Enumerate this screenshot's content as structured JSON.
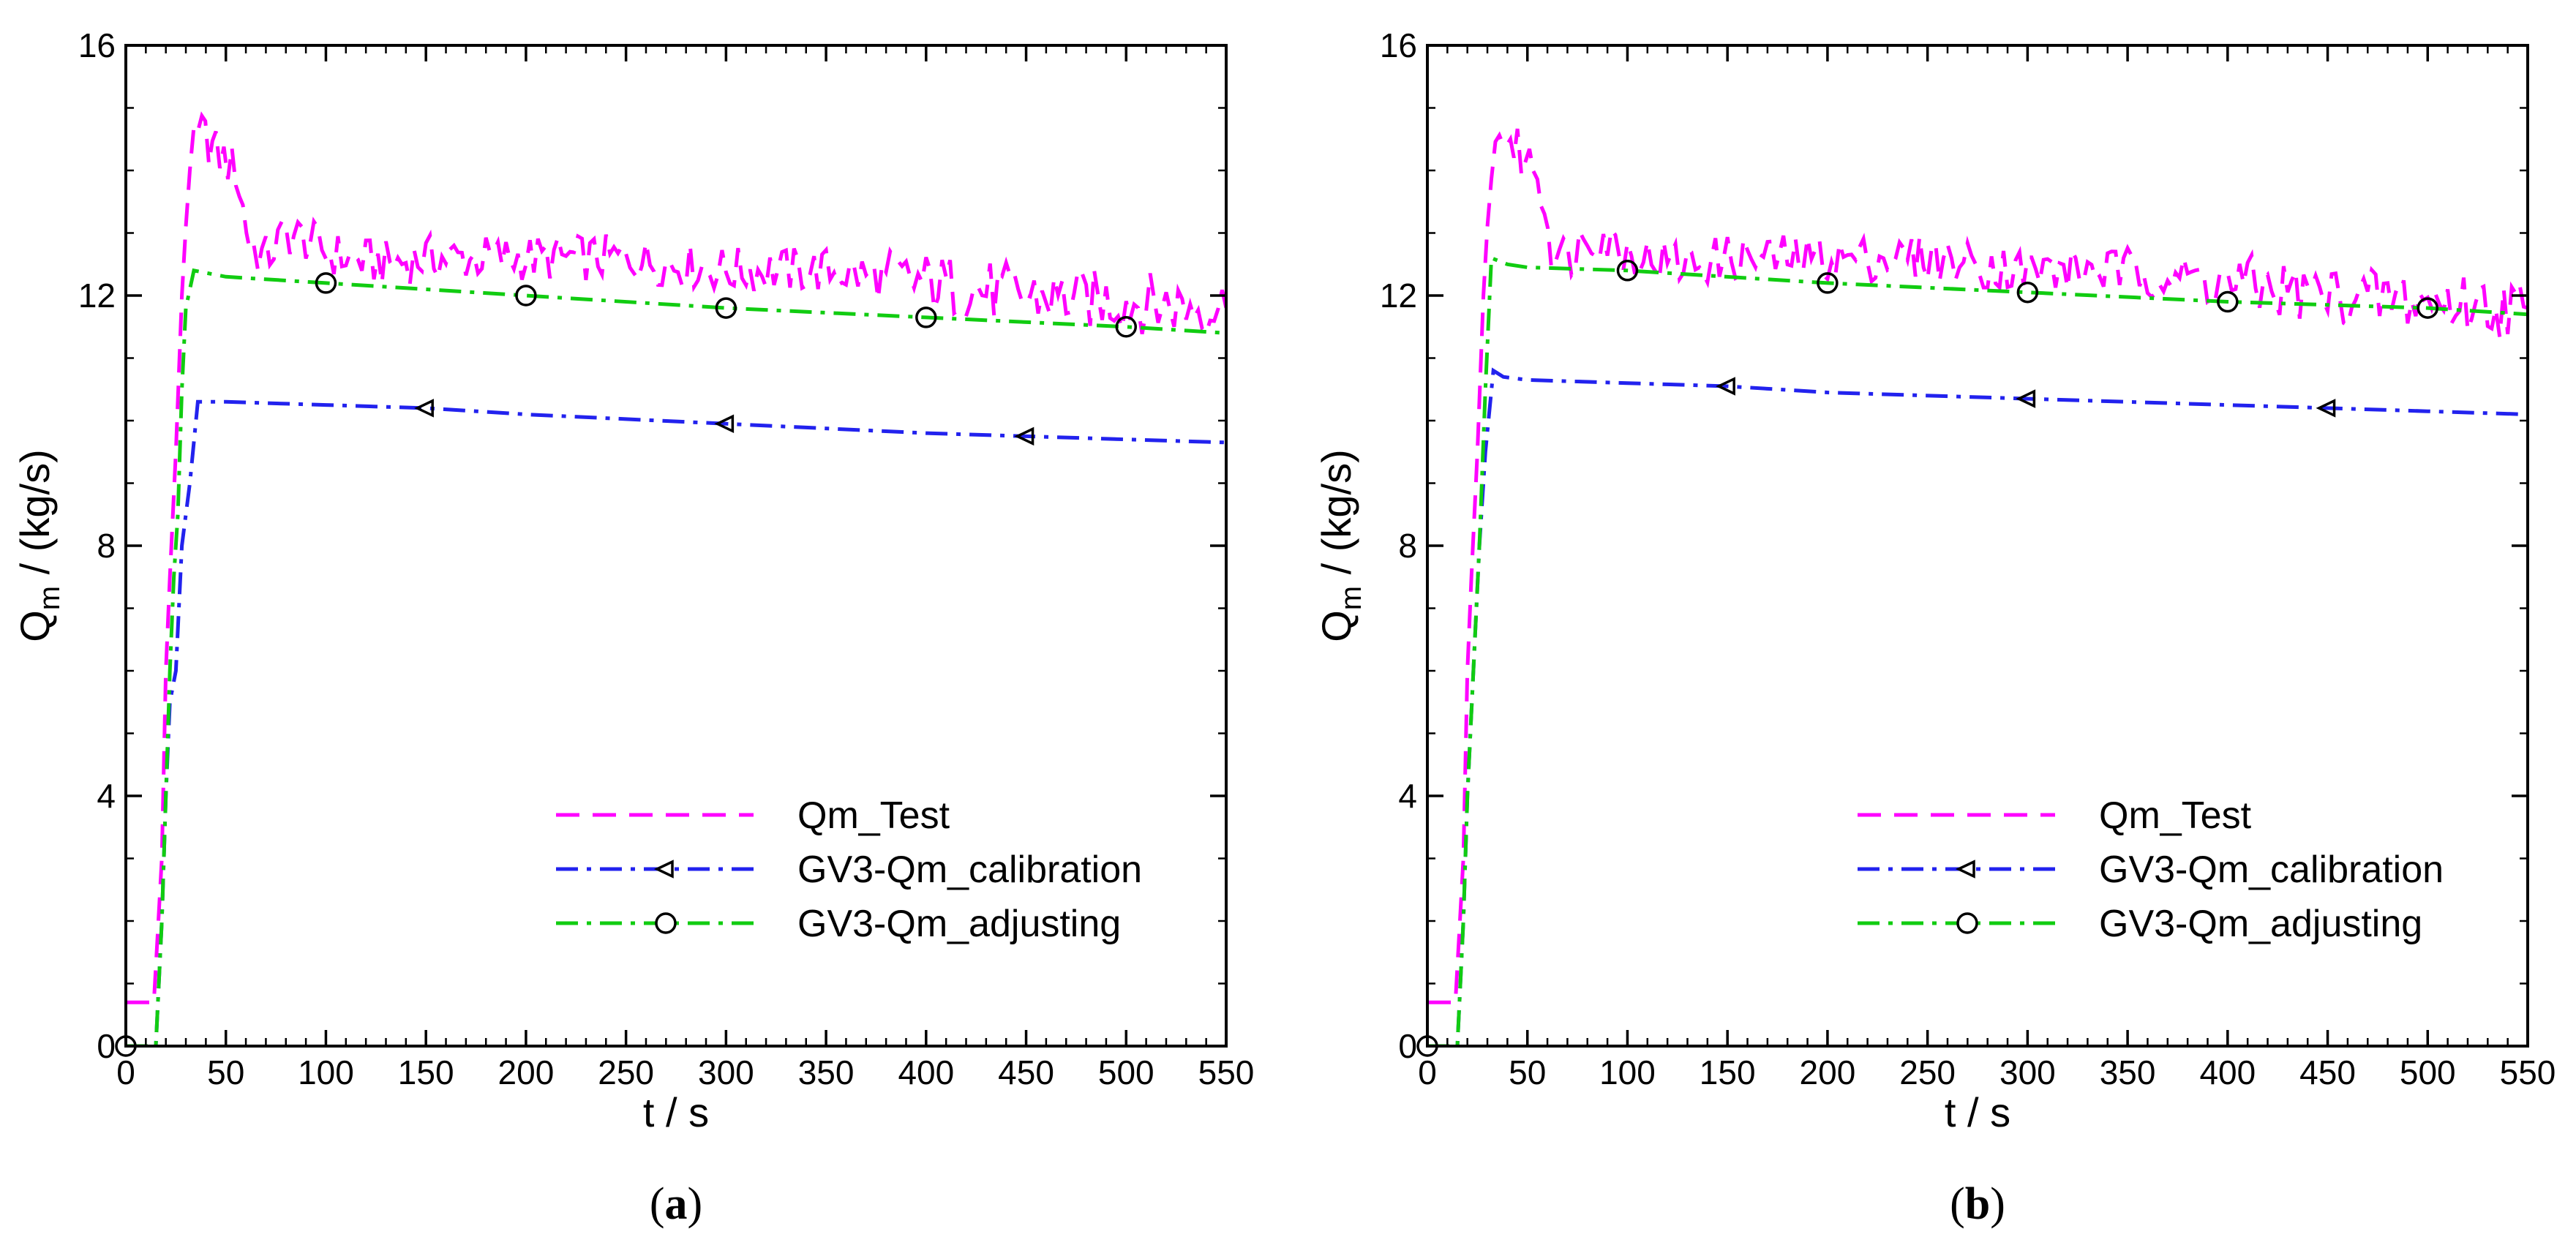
{
  "colors": {
    "test": "#ff00ff",
    "calibration": "#2222ee",
    "adjusting": "#11cc11",
    "axis": "#000000"
  },
  "chart_data": [
    {
      "type": "line",
      "panel_label": "a",
      "xlabel": "t / s",
      "ylabel_main": "Q",
      "ylabel_sub": "m",
      "ylabel_rest": " / (kg/s)",
      "xlim": [
        0,
        550
      ],
      "ylim": [
        0,
        16
      ],
      "xticks": [
        0,
        50,
        100,
        150,
        200,
        250,
        300,
        350,
        400,
        450,
        500,
        550
      ],
      "yticks": [
        0,
        4,
        8,
        12,
        16
      ],
      "legend": [
        "Qm_Test",
        "GV3-Qm_calibration",
        "GV3-Qm_adjusting"
      ],
      "series": [
        {
          "name": "Qm_Test",
          "style": "dashed",
          "points": [
            [
              0,
              0.7
            ],
            [
              14,
              0.7
            ],
            [
              18,
              3
            ],
            [
              20,
              6
            ],
            [
              22,
              7.5
            ],
            [
              25,
              9.5
            ],
            [
              28,
              12
            ],
            [
              32,
              14.2
            ],
            [
              38,
              14.6
            ],
            [
              45,
              14.3
            ],
            [
              55,
              14.0
            ],
            [
              62,
              12.8
            ],
            [
              70,
              12.6
            ],
            [
              80,
              13.0
            ],
            [
              90,
              12.9
            ],
            [
              100,
              12.7
            ],
            [
              110,
              12.6
            ],
            [
              130,
              12.5
            ],
            [
              150,
              12.6
            ],
            [
              200,
              12.6
            ],
            [
              250,
              12.6
            ],
            [
              300,
              12.4
            ],
            [
              350,
              12.4
            ],
            [
              400,
              12.2
            ],
            [
              450,
              12.0
            ],
            [
              500,
              11.9
            ],
            [
              550,
              11.8
            ]
          ]
        },
        {
          "name": "GV3-Qm_calibration",
          "style": "dashdot",
          "marker": "triangle-left",
          "points": [
            [
              0,
              0
            ],
            [
              15,
              0
            ],
            [
              18,
              2
            ],
            [
              20,
              4
            ],
            [
              22,
              5.5
            ],
            [
              25,
              6
            ],
            [
              28,
              8
            ],
            [
              32,
              9
            ],
            [
              36,
              10.3
            ],
            [
              40,
              10.3
            ],
            [
              50,
              10.3
            ],
            [
              100,
              10.25
            ],
            [
              150,
              10.2
            ],
            [
              200,
              10.1
            ],
            [
              300,
              9.95
            ],
            [
              400,
              9.8
            ],
            [
              450,
              9.75
            ],
            [
              500,
              9.7
            ],
            [
              550,
              9.65
            ]
          ],
          "marker_x": [
            150,
            300,
            450
          ]
        },
        {
          "name": "GV3-Qm_adjusting",
          "style": "dashdot",
          "marker": "circle",
          "points": [
            [
              0,
              0
            ],
            [
              15,
              0
            ],
            [
              18,
              2
            ],
            [
              20,
              4
            ],
            [
              22,
              6
            ],
            [
              24,
              7.5
            ],
            [
              26,
              8.5
            ],
            [
              28,
              10.5
            ],
            [
              30,
              11.8
            ],
            [
              34,
              12.4
            ],
            [
              50,
              12.3
            ],
            [
              100,
              12.2
            ],
            [
              200,
              12.0
            ],
            [
              300,
              11.8
            ],
            [
              400,
              11.65
            ],
            [
              500,
              11.5
            ],
            [
              550,
              11.4
            ]
          ],
          "marker_x": [
            0,
            100,
            200,
            300,
            400,
            500
          ]
        }
      ]
    },
    {
      "type": "line",
      "panel_label": "b",
      "xlabel": "t / s",
      "ylabel_main": "Q",
      "ylabel_sub": "m",
      "ylabel_rest": " / (kg/s)",
      "xlim": [
        0,
        550
      ],
      "ylim": [
        0,
        16
      ],
      "xticks": [
        0,
        50,
        100,
        150,
        200,
        250,
        300,
        350,
        400,
        450,
        500,
        550
      ],
      "yticks": [
        0,
        4,
        8,
        12,
        16
      ],
      "legend": [
        "Qm_Test",
        "GV3-Qm_calibration",
        "GV3-Qm_adjusting"
      ],
      "series": [
        {
          "name": "Qm_Test",
          "style": "dashed",
          "points": [
            [
              0,
              0.7
            ],
            [
              14,
              0.7
            ],
            [
              18,
              3
            ],
            [
              20,
              6
            ],
            [
              22,
              7.5
            ],
            [
              25,
              9.5
            ],
            [
              28,
              12
            ],
            [
              32,
              14.2
            ],
            [
              38,
              14.6
            ],
            [
              45,
              14.3
            ],
            [
              55,
              14.0
            ],
            [
              62,
              12.8
            ],
            [
              70,
              12.6
            ],
            [
              80,
              13.0
            ],
            [
              90,
              12.9
            ],
            [
              100,
              12.7
            ],
            [
              110,
              12.6
            ],
            [
              130,
              12.5
            ],
            [
              150,
              12.6
            ],
            [
              200,
              12.6
            ],
            [
              250,
              12.6
            ],
            [
              300,
              12.4
            ],
            [
              350,
              12.4
            ],
            [
              400,
              12.2
            ],
            [
              450,
              12.0
            ],
            [
              500,
              11.9
            ],
            [
              550,
              11.8
            ]
          ]
        },
        {
          "name": "GV3-Qm_calibration",
          "style": "dashdot",
          "marker": "triangle-left",
          "points": [
            [
              0,
              0
            ],
            [
              15,
              0
            ],
            [
              18,
              2
            ],
            [
              20,
              4
            ],
            [
              23,
              6
            ],
            [
              26,
              8
            ],
            [
              29,
              9.5
            ],
            [
              33,
              10.8
            ],
            [
              38,
              10.7
            ],
            [
              50,
              10.65
            ],
            [
              100,
              10.6
            ],
            [
              150,
              10.55
            ],
            [
              200,
              10.45
            ],
            [
              300,
              10.35
            ],
            [
              400,
              10.25
            ],
            [
              450,
              10.2
            ],
            [
              500,
              10.15
            ],
            [
              550,
              10.1
            ]
          ],
          "marker_x": [
            150,
            300,
            450
          ]
        },
        {
          "name": "GV3-Qm_adjusting",
          "style": "dashdot",
          "marker": "circle",
          "points": [
            [
              0,
              0
            ],
            [
              15,
              0
            ],
            [
              18,
              2
            ],
            [
              20,
              4
            ],
            [
              23,
              6
            ],
            [
              26,
              8
            ],
            [
              29,
              10.5
            ],
            [
              32,
              12.6
            ],
            [
              40,
              12.5
            ],
            [
              50,
              12.45
            ],
            [
              100,
              12.4
            ],
            [
              200,
              12.2
            ],
            [
              300,
              12.05
            ],
            [
              400,
              11.9
            ],
            [
              500,
              11.8
            ],
            [
              550,
              11.7
            ]
          ],
          "marker_x": [
            0,
            100,
            200,
            300,
            400,
            500
          ]
        }
      ]
    }
  ]
}
